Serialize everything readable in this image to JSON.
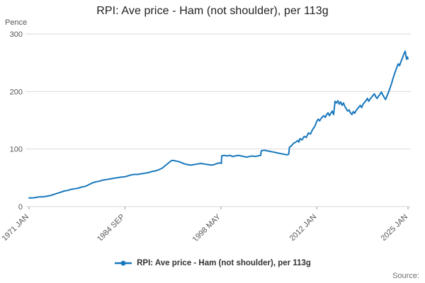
{
  "page": {
    "title": "RPI: Ave price - Ham (not shoulder), per 113g",
    "source_label": "Source:"
  },
  "legend": {
    "label": "RPI: Ave price - Ham (not shoulder), per 113g"
  },
  "colors": {
    "accent": "#1877bd",
    "grid": "#d9d9d9",
    "tick": "#999999",
    "axis_text": "#555555"
  },
  "chart_data": {
    "type": "line",
    "title": "RPI: Ave price - Ham (not shoulder), per 113g",
    "ylabel": "Pence",
    "xlabel": "",
    "ylim": [
      0,
      300
    ],
    "yticks": [
      0,
      100,
      200,
      300
    ],
    "xlim": [
      1970.7,
      2025.4
    ],
    "xticks": [
      {
        "x": 1971.0,
        "label": "1971 JAN"
      },
      {
        "x": 1984.667,
        "label": "1984 SEP"
      },
      {
        "x": 1998.333,
        "label": "1998 MAY"
      },
      {
        "x": 2012.0,
        "label": "2012 JAN"
      },
      {
        "x": 2025.0,
        "label": "2025 JAN"
      }
    ],
    "grid": true,
    "legend_position": "bottom",
    "series": [
      {
        "name": "RPI: Ave price - Ham (not shoulder), per 113g",
        "color": "#1877bd",
        "points": [
          [
            1971.0,
            15
          ],
          [
            1971.5,
            15
          ],
          [
            1972.0,
            16
          ],
          [
            1972.5,
            17
          ],
          [
            1973.0,
            17
          ],
          [
            1973.5,
            18
          ],
          [
            1974.0,
            19
          ],
          [
            1974.5,
            21
          ],
          [
            1975.0,
            23
          ],
          [
            1975.5,
            25
          ],
          [
            1976.0,
            27
          ],
          [
            1976.5,
            28
          ],
          [
            1977.0,
            30
          ],
          [
            1977.5,
            31
          ],
          [
            1978.0,
            32
          ],
          [
            1978.5,
            34
          ],
          [
            1979.0,
            35
          ],
          [
            1979.5,
            38
          ],
          [
            1980.0,
            41
          ],
          [
            1980.5,
            43
          ],
          [
            1981.0,
            44
          ],
          [
            1981.5,
            46
          ],
          [
            1982.0,
            47
          ],
          [
            1982.5,
            48
          ],
          [
            1983.0,
            49
          ],
          [
            1983.5,
            50
          ],
          [
            1984.0,
            51
          ],
          [
            1984.7,
            52
          ],
          [
            1985.0,
            53
          ],
          [
            1985.5,
            55
          ],
          [
            1986.0,
            56
          ],
          [
            1986.5,
            56
          ],
          [
            1987.0,
            57
          ],
          [
            1987.5,
            58
          ],
          [
            1988.0,
            59
          ],
          [
            1988.5,
            61
          ],
          [
            1989.0,
            62
          ],
          [
            1989.5,
            64
          ],
          [
            1990.0,
            67
          ],
          [
            1990.5,
            72
          ],
          [
            1991.0,
            77
          ],
          [
            1991.3,
            80
          ],
          [
            1991.6,
            80
          ],
          [
            1992.0,
            79
          ],
          [
            1992.4,
            78
          ],
          [
            1992.8,
            76
          ],
          [
            1993.2,
            74
          ],
          [
            1993.6,
            73
          ],
          [
            1994.0,
            72
          ],
          [
            1994.5,
            73
          ],
          [
            1995.0,
            74
          ],
          [
            1995.5,
            75
          ],
          [
            1996.0,
            74
          ],
          [
            1996.5,
            73
          ],
          [
            1997.0,
            72
          ],
          [
            1997.4,
            73
          ],
          [
            1997.8,
            75
          ],
          [
            1998.2,
            76
          ],
          [
            1998.4,
            75
          ],
          [
            1998.45,
            88
          ],
          [
            1998.8,
            89
          ],
          [
            1999.2,
            88
          ],
          [
            1999.6,
            89
          ],
          [
            2000.0,
            87
          ],
          [
            2000.4,
            88
          ],
          [
            2000.8,
            89
          ],
          [
            2001.2,
            88
          ],
          [
            2001.6,
            87
          ],
          [
            2002.0,
            86
          ],
          [
            2002.4,
            87
          ],
          [
            2002.8,
            88
          ],
          [
            2003.2,
            87
          ],
          [
            2003.6,
            88
          ],
          [
            2004.0,
            89
          ],
          [
            2004.1,
            97
          ],
          [
            2004.5,
            98
          ],
          [
            2004.9,
            97
          ],
          [
            2005.3,
            96
          ],
          [
            2005.7,
            95
          ],
          [
            2006.1,
            94
          ],
          [
            2006.5,
            93
          ],
          [
            2006.9,
            92
          ],
          [
            2007.3,
            91
          ],
          [
            2007.7,
            90
          ],
          [
            2008.0,
            91
          ],
          [
            2008.1,
            103
          ],
          [
            2008.4,
            106
          ],
          [
            2008.7,
            110
          ],
          [
            2009.0,
            112
          ],
          [
            2009.3,
            115
          ],
          [
            2009.45,
            112
          ],
          [
            2009.6,
            118
          ],
          [
            2009.9,
            116
          ],
          [
            2010.2,
            122
          ],
          [
            2010.5,
            120
          ],
          [
            2010.8,
            128
          ],
          [
            2011.1,
            126
          ],
          [
            2011.4,
            134
          ],
          [
            2011.7,
            139
          ],
          [
            2012.0,
            148
          ],
          [
            2012.2,
            152
          ],
          [
            2012.4,
            149
          ],
          [
            2012.6,
            153
          ],
          [
            2012.8,
            156
          ],
          [
            2013.0,
            158
          ],
          [
            2013.2,
            155
          ],
          [
            2013.4,
            160
          ],
          [
            2013.6,
            163
          ],
          [
            2013.8,
            158
          ],
          [
            2014.0,
            162
          ],
          [
            2014.2,
            166
          ],
          [
            2014.4,
            160
          ],
          [
            2014.6,
            183
          ],
          [
            2014.8,
            180
          ],
          [
            2015.0,
            184
          ],
          [
            2015.2,
            178
          ],
          [
            2015.4,
            182
          ],
          [
            2015.6,
            176
          ],
          [
            2015.8,
            180
          ],
          [
            2016.0,
            174
          ],
          [
            2016.2,
            170
          ],
          [
            2016.4,
            166
          ],
          [
            2016.6,
            168
          ],
          [
            2016.8,
            163
          ],
          [
            2017.0,
            160
          ],
          [
            2017.2,
            165
          ],
          [
            2017.4,
            162
          ],
          [
            2017.6,
            167
          ],
          [
            2017.8,
            170
          ],
          [
            2018.0,
            173
          ],
          [
            2018.2,
            176
          ],
          [
            2018.4,
            172
          ],
          [
            2018.6,
            178
          ],
          [
            2018.8,
            181
          ],
          [
            2019.0,
            184
          ],
          [
            2019.2,
            188
          ],
          [
            2019.4,
            183
          ],
          [
            2019.6,
            187
          ],
          [
            2019.8,
            190
          ],
          [
            2020.0,
            193
          ],
          [
            2020.2,
            196
          ],
          [
            2020.4,
            191
          ],
          [
            2020.6,
            188
          ],
          [
            2020.8,
            192
          ],
          [
            2021.0,
            195
          ],
          [
            2021.2,
            199
          ],
          [
            2021.4,
            194
          ],
          [
            2021.6,
            190
          ],
          [
            2021.8,
            186
          ],
          [
            2022.0,
            192
          ],
          [
            2022.2,
            198
          ],
          [
            2022.4,
            205
          ],
          [
            2022.6,
            212
          ],
          [
            2022.8,
            220
          ],
          [
            2023.0,
            228
          ],
          [
            2023.2,
            235
          ],
          [
            2023.4,
            242
          ],
          [
            2023.6,
            248
          ],
          [
            2023.8,
            245
          ],
          [
            2024.0,
            252
          ],
          [
            2024.2,
            258
          ],
          [
            2024.4,
            265
          ],
          [
            2024.6,
            270
          ],
          [
            2024.7,
            262
          ],
          [
            2024.8,
            256
          ],
          [
            2024.9,
            260
          ],
          [
            2025.0,
            257
          ]
        ]
      }
    ]
  }
}
